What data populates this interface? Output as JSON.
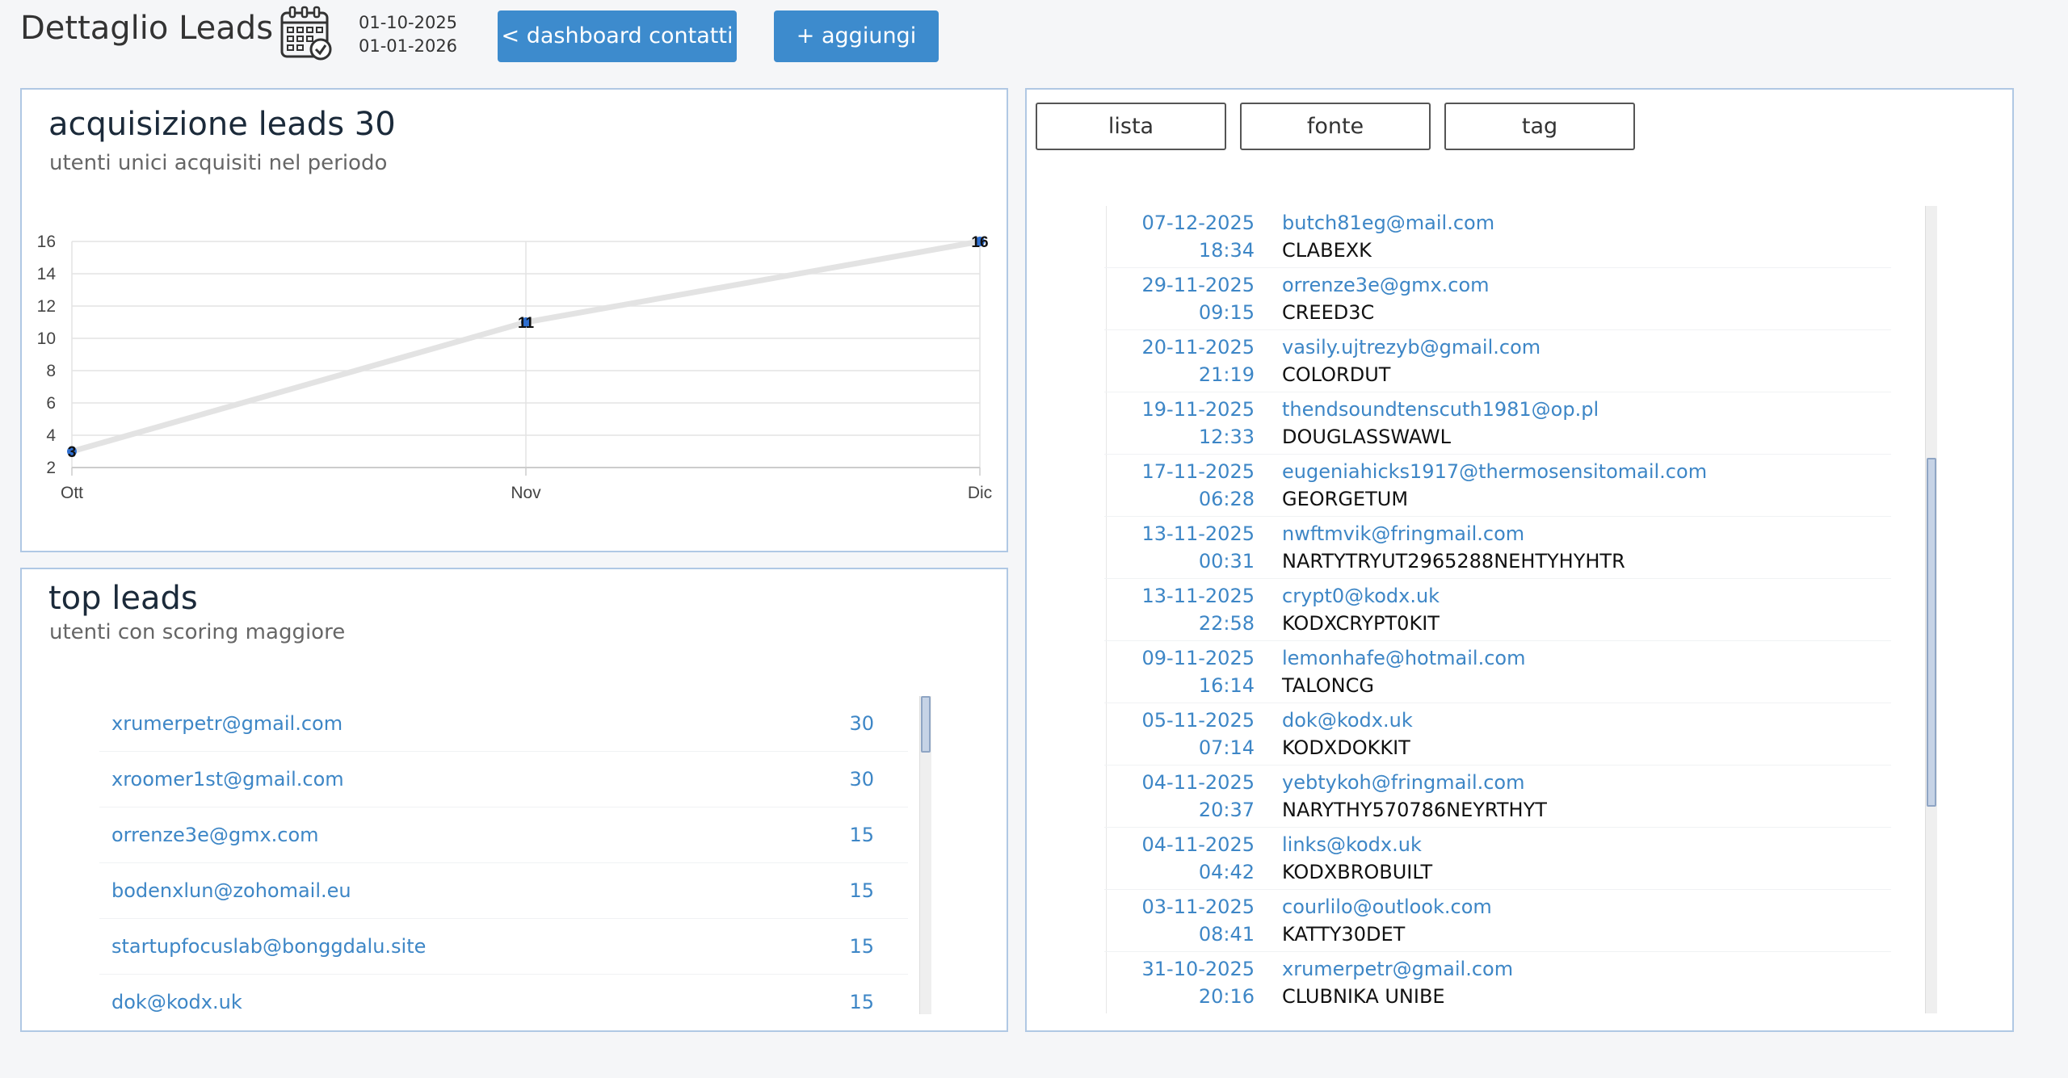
{
  "header": {
    "title": "Dettaglio Leads",
    "date_from": "01-10-2025",
    "date_to": "01-01-2026",
    "back_button": "< dashboard contatti",
    "add_button": "+ aggiungi",
    "calendar_icon": "calendar-check-icon"
  },
  "acquisition": {
    "title": "acquisizione leads 30",
    "subtitle": "utenti unici acquisiti nel periodo"
  },
  "chart_data": {
    "type": "line",
    "categories": [
      "Ott",
      "Nov",
      "Dic"
    ],
    "series": [
      {
        "values": [
          3,
          11,
          16
        ]
      }
    ],
    "data_labels": [
      "3",
      "11",
      "16"
    ],
    "yticks": [
      2,
      4,
      6,
      8,
      10,
      12,
      14,
      16
    ],
    "ylim": [
      2,
      16
    ],
    "grid": true,
    "line_color": "#e3e3e3",
    "point_color": "#2f6fd0"
  },
  "top_leads": {
    "title": "top leads",
    "subtitle": "utenti con scoring maggiore",
    "rows": [
      {
        "email": "xrumerpetr@gmail.com",
        "score": "30"
      },
      {
        "email": "xroomer1st@gmail.com",
        "score": "30"
      },
      {
        "email": "orrenze3e@gmx.com",
        "score": "15"
      },
      {
        "email": "bodenxlun@zohomail.eu",
        "score": "15"
      },
      {
        "email": "startupfocuslab@bonggdalu.site",
        "score": "15"
      },
      {
        "email": "dok@kodx.uk",
        "score": "15"
      }
    ]
  },
  "tabs": {
    "lista": "lista",
    "fonte": "fonte",
    "tag": "tag"
  },
  "leads_list": [
    {
      "date": "07-12-2025",
      "time": "18:34",
      "email": "butch81eg@mail.com",
      "name": "CLABEXK"
    },
    {
      "date": "29-11-2025",
      "time": "09:15",
      "email": "orrenze3e@gmx.com",
      "name": "CREED3C"
    },
    {
      "date": "20-11-2025",
      "time": "21:19",
      "email": "vasily.ujtrezyb@gmail.com",
      "name": "COLORDUT"
    },
    {
      "date": "19-11-2025",
      "time": "12:33",
      "email": "thendsoundtenscuth1981@op.pl",
      "name": "DOUGLASSWAWL"
    },
    {
      "date": "17-11-2025",
      "time": "06:28",
      "email": "eugeniahicks1917@thermosensitomail.com",
      "name": "GEORGETUM"
    },
    {
      "date": "13-11-2025",
      "time": "00:31",
      "email": "nwftmvik@fringmail.com",
      "name": "NARTYTRYUT2965288NEHTYHYHTR"
    },
    {
      "date": "13-11-2025",
      "time": "22:58",
      "email": "crypt0@kodx.uk",
      "name": "KODXCRYPT0KIT"
    },
    {
      "date": "09-11-2025",
      "time": "16:14",
      "email": "lemonhafe@hotmail.com",
      "name": "TALONCG"
    },
    {
      "date": "05-11-2025",
      "time": "07:14",
      "email": "dok@kodx.uk",
      "name": "KODXDOKKIT"
    },
    {
      "date": "04-11-2025",
      "time": "20:37",
      "email": "yebtykoh@fringmail.com",
      "name": "NARYTHY570786NEYRTHYT"
    },
    {
      "date": "04-11-2025",
      "time": "04:42",
      "email": "links@kodx.uk",
      "name": "KODXBROBUILT"
    },
    {
      "date": "03-11-2025",
      "time": "08:41",
      "email": "courlilo@outlook.com",
      "name": "KATTY30DET"
    },
    {
      "date": "31-10-2025",
      "time": "20:16",
      "email": "xrumerpetr@gmail.com",
      "name": "CLUBNIKA UNIBE"
    }
  ],
  "scroll": {
    "top_leads_position": 0.0,
    "leads_list_position": 0.55
  }
}
